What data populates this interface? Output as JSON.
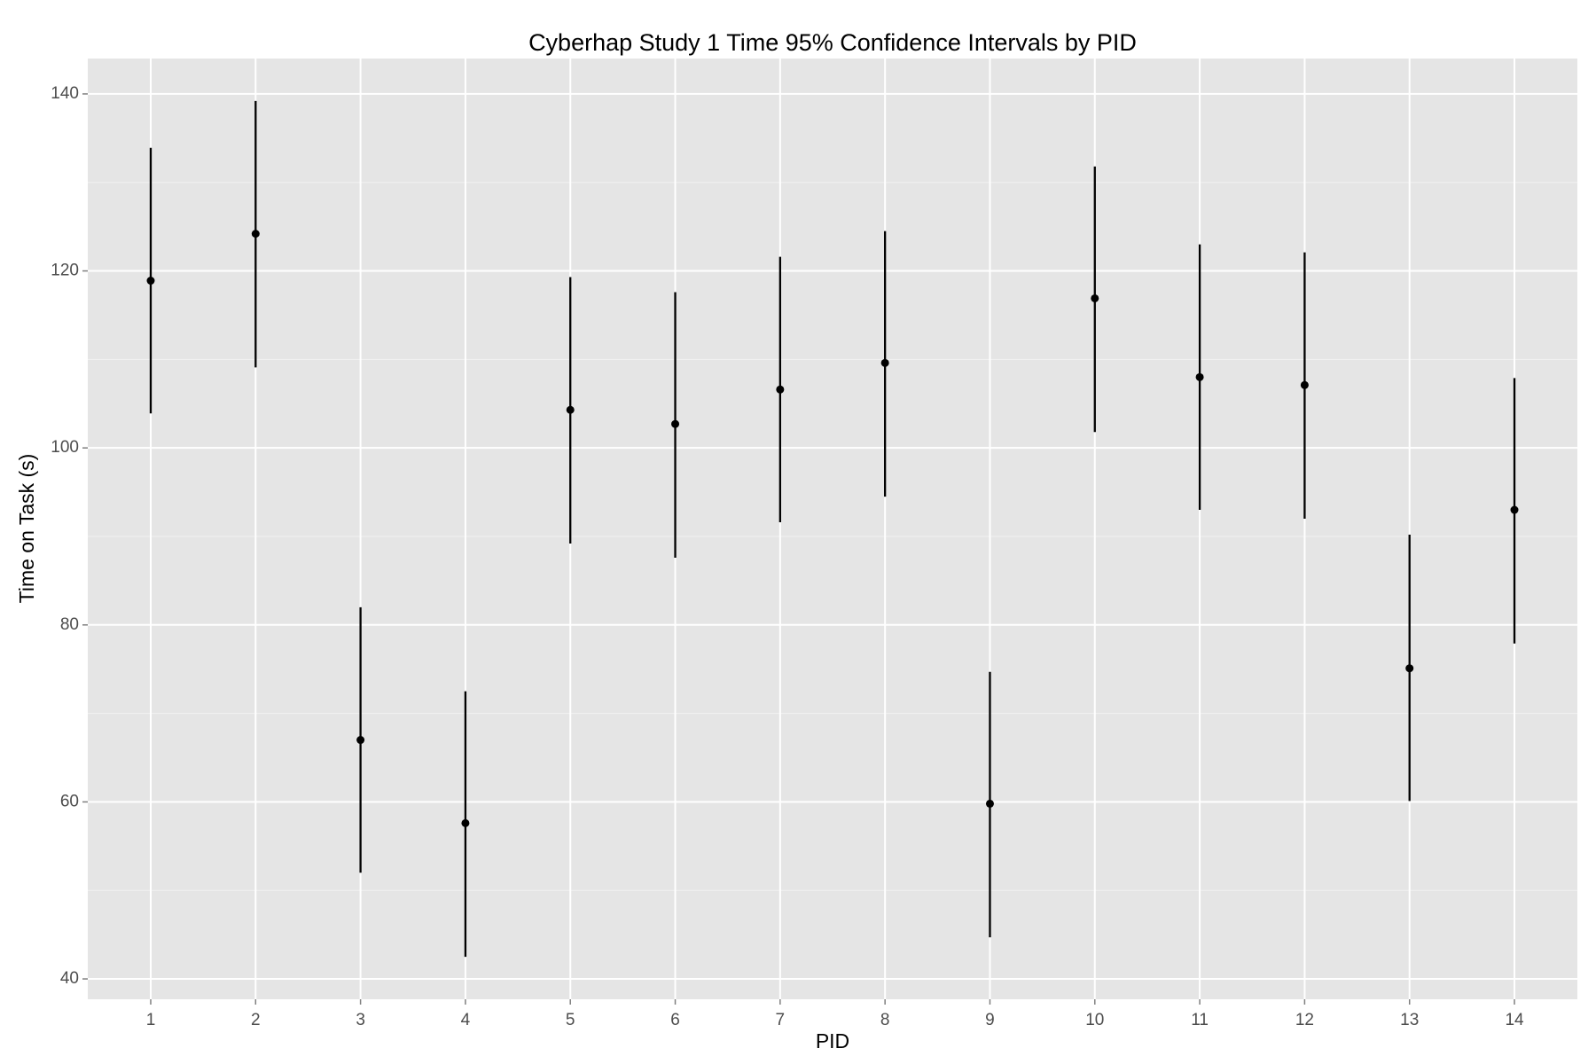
{
  "chart_data": {
    "type": "errorbar",
    "title": "Cyberhap Study 1 Time 95% Confidence Intervals by PID",
    "x_label": "PID",
    "y_label": "Time on Task (s)",
    "categories": [
      "1",
      "2",
      "3",
      "4",
      "5",
      "6",
      "7",
      "8",
      "9",
      "10",
      "11",
      "12",
      "13",
      "14"
    ],
    "values": [
      118.9,
      124.2,
      67.0,
      57.6,
      104.3,
      102.7,
      106.6,
      109.6,
      59.8,
      116.9,
      108.0,
      107.1,
      75.1,
      93.0
    ],
    "lower": [
      103.9,
      109.1,
      52.0,
      42.5,
      89.2,
      87.6,
      91.6,
      94.5,
      44.7,
      101.8,
      93.0,
      92.0,
      60.1,
      77.9
    ],
    "upper": [
      133.9,
      139.2,
      82.0,
      72.5,
      119.3,
      117.6,
      121.6,
      124.5,
      74.7,
      131.8,
      123.0,
      122.1,
      90.2,
      107.9
    ],
    "color": "#000000",
    "panel_color": "#e5e5e5",
    "grid_color": "#ffffff",
    "ylim": [
      37.7,
      144.0
    ],
    "yticks": [
      40,
      60,
      80,
      100,
      120,
      140
    ],
    "grid": true
  }
}
